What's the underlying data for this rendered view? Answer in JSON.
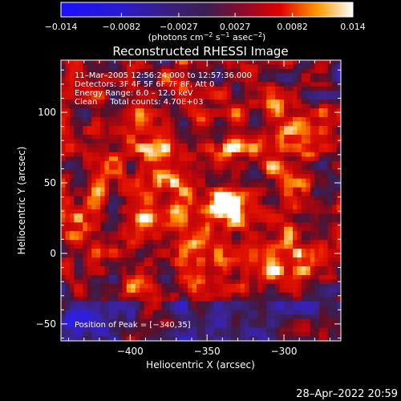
{
  "chart_data": {
    "type": "heatmap",
    "title": "Reconstructed RHESSI Image",
    "xlabel": "Heliocentric X (arcsec)",
    "ylabel": "Heliocentric Y (arcsec)",
    "xlim": [
      -445,
      -263
    ],
    "ylim": [
      -62,
      137
    ],
    "x_ticks": [
      -400,
      -350,
      -300
    ],
    "x_tick_labels": [
      "−400",
      "−350",
      "−300"
    ],
    "y_ticks": [
      -50,
      0,
      50,
      100
    ],
    "y_tick_labels": [
      "−50",
      "0",
      "50",
      "100"
    ],
    "colorbar": {
      "range": [
        -0.014,
        0.014
      ],
      "ticks": [
        -0.014,
        -0.0082,
        -0.0027,
        0.0027,
        0.0082,
        0.014
      ],
      "tick_labels": [
        "−0.014",
        "−0.0082",
        "−0.0027",
        "0.0027",
        "0.0082",
        "0.014"
      ],
      "unit_text": "(photons cm",
      "unit_exp1": "−2",
      "unit_mid": " s",
      "unit_exp2": "−1",
      "unit_mid2": " asec",
      "unit_exp3": "−2",
      "unit_close": ")"
    },
    "annotations": [
      "11–Mar–2005 12:56:24.000 to 12:57:36.000",
      "Detectors: 3F 4F 5F 6F 7F 8F, Att 0",
      "Energy Range: 6.0 – 12.0 keV",
      "Clean     Total counts: 4.70E+03"
    ],
    "peak_label": "Position of Peak = [−340,35]",
    "peak": {
      "x": -340,
      "y": 35,
      "value": 0.014
    },
    "footer_date": "28–Apr–2022 20:59"
  },
  "colors": {
    "background": "#000000",
    "negative": "#2010ff",
    "zero": "#3a1f52",
    "positive_mid": "#d00000",
    "positive_high": "#ffffff"
  }
}
